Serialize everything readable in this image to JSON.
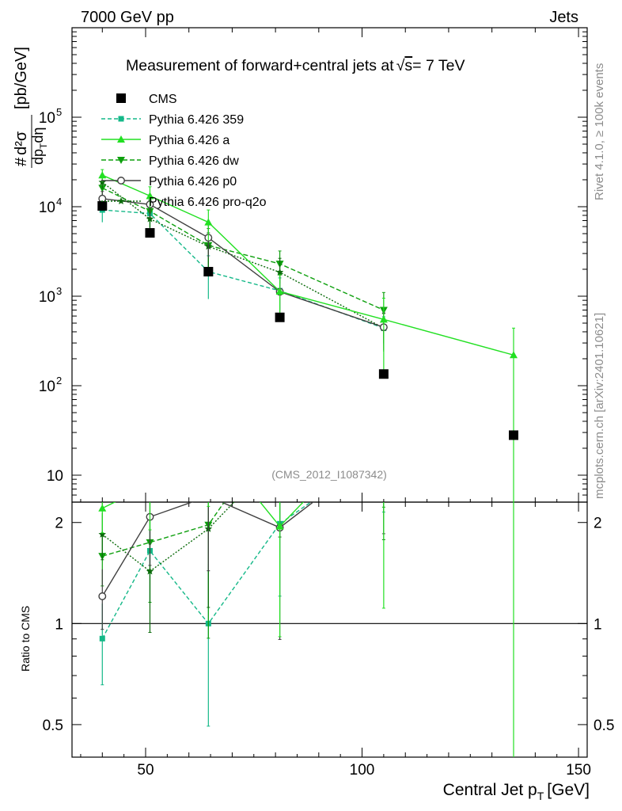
{
  "header": {
    "left": "7000 GeV pp",
    "right": "Jets"
  },
  "side_labels": {
    "rivet": "Rivet 4.1.0, ≥ 100k events",
    "mcplots": "mcplots.cern.ch [arXiv:2401.10621]"
  },
  "chart_data": {
    "type": "line",
    "title": "Measurement of forward+central jets at √s= 7 TeV",
    "title_main": "Measurement of forward+central jets at",
    "title_sqrt": "√",
    "title_s": "s",
    "title_energy": "= 7 TeV",
    "analysis_id": "(CMS_2012_I1087342)",
    "xlabel_main": "Central Jet p",
    "xlabel_sub": "T",
    "xlabel_unit": "[GeV]",
    "ylabel": "# d²σ / dp_T dη [pb/GeV]",
    "ylabel_parts": {
      "hash": "#",
      "num": "d²σ",
      "den": "dp",
      "den_sub": "T",
      "den_end": "dη",
      "unit": "[pb/GeV]"
    },
    "ratio_ylabel": "Ratio to CMS",
    "xlim": [
      33,
      152
    ],
    "ylim_main": [
      5,
      1000000
    ],
    "ylim_ratio": [
      0.4,
      2.3
    ],
    "x_ticks": [
      50,
      100,
      150
    ],
    "y_ticks_main": [
      {
        "v": 10,
        "label": "10"
      },
      {
        "v": 100,
        "label": "10",
        "exp": "2"
      },
      {
        "v": 1000,
        "label": "10",
        "exp": "3"
      },
      {
        "v": 10000,
        "label": "10",
        "exp": "4"
      },
      {
        "v": 100000,
        "label": "10",
        "exp": "5"
      }
    ],
    "y_ticks_ratio": [
      {
        "v": 0.5,
        "label": "0.5"
      },
      {
        "v": 1,
        "label": "1"
      },
      {
        "v": 2,
        "label": "2"
      }
    ],
    "x": [
      40,
      51,
      64.5,
      81,
      105,
      135
    ],
    "series": [
      {
        "name": "CMS",
        "color": "#000000",
        "dash": "",
        "marker": "square",
        "values": [
          10200,
          5100,
          1880,
          580,
          135,
          28
        ],
        "err": [
          0,
          0,
          0,
          0,
          0,
          0
        ]
      },
      {
        "name": "Pythia 6.426 359",
        "color": "#14b888",
        "dash": "5,3",
        "marker": "small-square",
        "values": [
          9200,
          8400,
          1880,
          1150,
          440,
          null
        ],
        "err": [
          2500,
          2500,
          950,
          450,
          150,
          null
        ]
      },
      {
        "name": "Pythia 6.426 a",
        "color": "#22e022",
        "dash": "",
        "marker": "triangle-up",
        "values": [
          22500,
          13200,
          6700,
          1130,
          550,
          220
        ],
        "err": [
          3500,
          3500,
          2500,
          600,
          400,
          220
        ]
      },
      {
        "name": "Pythia 6.426 dw",
        "color": "#0ea00e",
        "dash": "6,3",
        "marker": "triangle-down",
        "values": [
          16200,
          8900,
          3700,
          2300,
          700,
          null
        ],
        "err": [
          3000,
          3000,
          2000,
          900,
          400,
          null
        ]
      },
      {
        "name": "Pythia 6.426 p0",
        "color": "#404040",
        "dash": "",
        "marker": "circle-open",
        "values": [
          12300,
          10600,
          4500,
          1120,
          450,
          null
        ],
        "err": [
          2500,
          3000,
          1800,
          600,
          200,
          null
        ]
      },
      {
        "name": "Pythia 6.426 pro-q2o",
        "color": "#0b6b0b",
        "dash": "2,2",
        "marker": "star",
        "values": [
          18800,
          7300,
          3600,
          1850,
          440,
          null
        ],
        "err": [
          3000,
          2500,
          1500,
          800,
          200,
          null
        ]
      }
    ]
  }
}
